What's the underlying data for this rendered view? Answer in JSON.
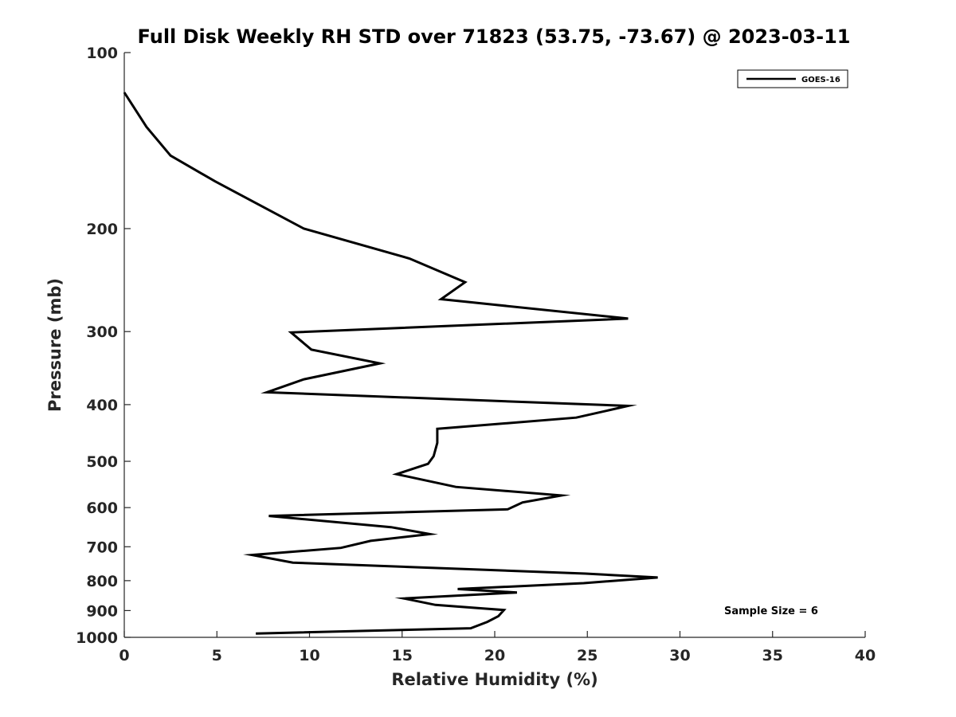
{
  "chart_data": {
    "type": "line",
    "title": "Full Disk Weekly RH STD over 71823 (53.75, -73.67) @ 2023-03-11",
    "xlabel": "Relative Humidity (%)",
    "ylabel": "Pressure (mb)",
    "xlim": [
      0,
      40
    ],
    "ylim": [
      100,
      1000
    ],
    "yscale": "log",
    "y_inverted": true,
    "grid": false,
    "legend_position": "top-right",
    "x_ticks": [
      "0",
      "5",
      "10",
      "15",
      "20",
      "25",
      "30",
      "35",
      "40"
    ],
    "y_ticks": [
      "100",
      "200",
      "300",
      "400",
      "500",
      "600",
      "700",
      "800",
      "900",
      "1000"
    ],
    "annotation": "Sample Size = 6",
    "series": [
      {
        "name": "GOES-16",
        "color": "#000000",
        "points": [
          [
            0.0,
            117
          ],
          [
            1.2,
            134
          ],
          [
            2.5,
            150
          ],
          [
            4.9,
            166
          ],
          [
            9.7,
            200
          ],
          [
            15.4,
            225
          ],
          [
            18.4,
            247
          ],
          [
            17.1,
            264
          ],
          [
            27.2,
            285
          ],
          [
            9.0,
            301
          ],
          [
            10.1,
            322
          ],
          [
            13.8,
            340
          ],
          [
            9.7,
            362
          ],
          [
            7.7,
            381
          ],
          [
            27.2,
            402
          ],
          [
            24.4,
            421
          ],
          [
            16.9,
            440
          ],
          [
            16.9,
            465
          ],
          [
            16.7,
            490
          ],
          [
            16.4,
            505
          ],
          [
            14.7,
            526
          ],
          [
            17.9,
            553
          ],
          [
            23.6,
            572
          ],
          [
            21.5,
            588
          ],
          [
            20.7,
            604
          ],
          [
            7.8,
            620
          ],
          [
            14.4,
            648
          ],
          [
            16.5,
            666
          ],
          [
            13.3,
            684
          ],
          [
            11.7,
            703
          ],
          [
            6.9,
            723
          ],
          [
            9.1,
            745
          ],
          [
            24.9,
            778
          ],
          [
            28.8,
            790
          ],
          [
            24.8,
            808
          ],
          [
            18.0,
            827
          ],
          [
            21.2,
            838
          ],
          [
            15.1,
            858
          ],
          [
            16.8,
            880
          ],
          [
            20.5,
            898
          ],
          [
            20.2,
            920
          ],
          [
            19.6,
            941
          ],
          [
            18.7,
            965
          ],
          [
            7.1,
            985
          ]
        ]
      }
    ]
  }
}
